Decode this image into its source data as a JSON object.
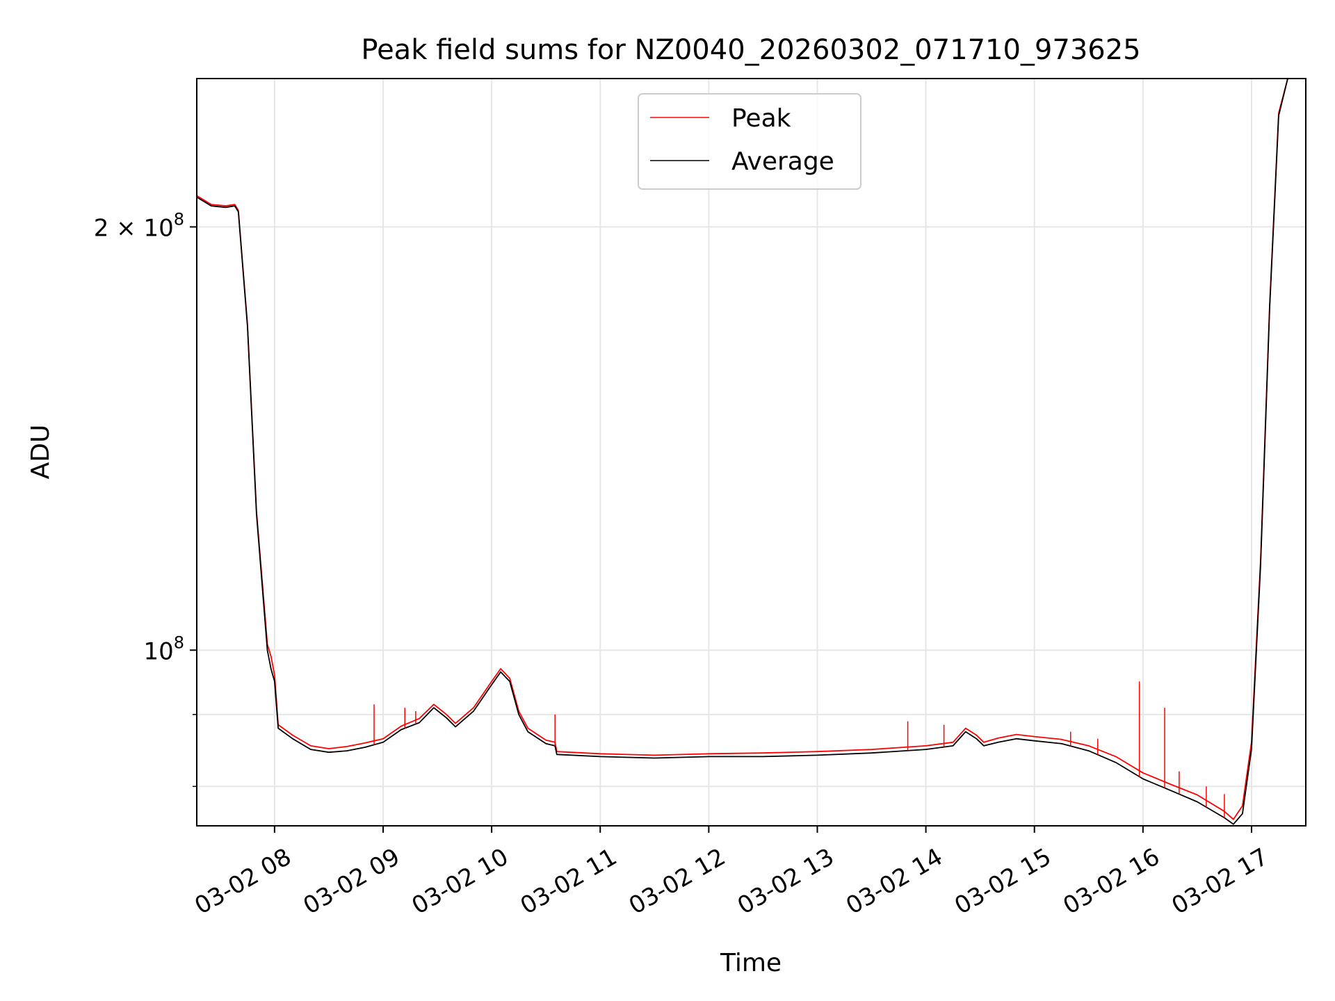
{
  "chart_data": {
    "type": "line",
    "title": "Peak field sums for NZ0040_20260302_071710_973625",
    "xlabel": "Time",
    "ylabel": "ADU",
    "yscale": "log",
    "xlim": [
      "2026-03-02 07:17",
      "2026-03-02 17:30"
    ],
    "ylim": [
      75000000,
      255000000
    ],
    "x_ticks": [
      {
        "value": "2026-03-02 08:00",
        "label": "03-02 08"
      },
      {
        "value": "2026-03-02 09:00",
        "label": "03-02 09"
      },
      {
        "value": "2026-03-02 10:00",
        "label": "03-02 10"
      },
      {
        "value": "2026-03-02 11:00",
        "label": "03-02 11"
      },
      {
        "value": "2026-03-02 12:00",
        "label": "03-02 12"
      },
      {
        "value": "2026-03-02 13:00",
        "label": "03-02 13"
      },
      {
        "value": "2026-03-02 14:00",
        "label": "03-02 14"
      },
      {
        "value": "2026-03-02 15:00",
        "label": "03-02 15"
      },
      {
        "value": "2026-03-02 16:00",
        "label": "03-02 16"
      },
      {
        "value": "2026-03-02 17:00",
        "label": "03-02 17"
      }
    ],
    "y_major_ticks": [
      {
        "value": 100000000,
        "base": "10",
        "exp": "8",
        "prefix": ""
      },
      {
        "value": 200000000,
        "base": "10",
        "exp": "8",
        "prefix": "2 × "
      }
    ],
    "y_minor_ticks": [
      80000000,
      90000000
    ],
    "grid": true,
    "legend_position": "top-center",
    "colors": {
      "peak": "#ff0000",
      "average": "#000000",
      "grid": "#e6e6e6"
    },
    "series": [
      {
        "name": "Average",
        "color": "#000000",
        "points": [
          [
            "2026-03-02 07:17",
            210000000
          ],
          [
            "2026-03-02 07:25",
            207000000
          ],
          [
            "2026-03-02 07:33",
            206500000
          ],
          [
            "2026-03-02 07:38",
            207000000
          ],
          [
            "2026-03-02 07:40",
            205000000
          ],
          [
            "2026-03-02 07:45",
            170000000
          ],
          [
            "2026-03-02 07:50",
            125000000
          ],
          [
            "2026-03-02 07:56",
            100000000
          ],
          [
            "2026-03-02 07:58",
            97000000
          ],
          [
            "2026-03-02 08:00",
            95000000
          ],
          [
            "2026-03-02 08:02",
            88000000
          ],
          [
            "2026-03-02 08:10",
            86500000
          ],
          [
            "2026-03-02 08:20",
            85000000
          ],
          [
            "2026-03-02 08:30",
            84600000
          ],
          [
            "2026-03-02 08:40",
            84800000
          ],
          [
            "2026-03-02 08:50",
            85300000
          ],
          [
            "2026-03-02 09:00",
            86000000
          ],
          [
            "2026-03-02 09:10",
            87800000
          ],
          [
            "2026-03-02 09:20",
            88800000
          ],
          [
            "2026-03-02 09:28",
            91000000
          ],
          [
            "2026-03-02 09:35",
            89500000
          ],
          [
            "2026-03-02 09:40",
            88200000
          ],
          [
            "2026-03-02 09:50",
            90500000
          ],
          [
            "2026-03-02 10:00",
            94500000
          ],
          [
            "2026-03-02 10:05",
            96500000
          ],
          [
            "2026-03-02 10:10",
            95000000
          ],
          [
            "2026-03-02 10:15",
            90000000
          ],
          [
            "2026-03-02 10:20",
            87500000
          ],
          [
            "2026-03-02 10:30",
            85800000
          ],
          [
            "2026-03-02 10:35",
            85500000
          ],
          [
            "2026-03-02 10:36",
            84300000
          ],
          [
            "2026-03-02 11:00",
            84000000
          ],
          [
            "2026-03-02 11:30",
            83800000
          ],
          [
            "2026-03-02 12:00",
            84000000
          ],
          [
            "2026-03-02 12:30",
            84000000
          ],
          [
            "2026-03-02 13:00",
            84200000
          ],
          [
            "2026-03-02 13:30",
            84500000
          ],
          [
            "2026-03-02 14:00",
            85000000
          ],
          [
            "2026-03-02 14:15",
            85500000
          ],
          [
            "2026-03-02 14:22",
            87500000
          ],
          [
            "2026-03-02 14:28",
            86500000
          ],
          [
            "2026-03-02 14:32",
            85500000
          ],
          [
            "2026-03-02 14:40",
            86000000
          ],
          [
            "2026-03-02 14:50",
            86500000
          ],
          [
            "2026-03-02 15:00",
            86200000
          ],
          [
            "2026-03-02 15:15",
            85800000
          ],
          [
            "2026-03-02 15:30",
            84800000
          ],
          [
            "2026-03-02 15:45",
            83200000
          ],
          [
            "2026-03-02 16:00",
            81000000
          ],
          [
            "2026-03-02 16:15",
            79500000
          ],
          [
            "2026-03-02 16:30",
            78000000
          ],
          [
            "2026-03-02 16:45",
            76000000
          ],
          [
            "2026-03-02 16:50",
            75200000
          ],
          [
            "2026-03-02 16:55",
            76500000
          ],
          [
            "2026-03-02 17:00",
            85000000
          ],
          [
            "2026-03-02 17:05",
            115000000
          ],
          [
            "2026-03-02 17:10",
            175000000
          ],
          [
            "2026-03-02 17:15",
            240000000
          ],
          [
            "2026-03-02 17:20",
            255000000
          ],
          [
            "2026-03-02 17:30",
            255000000
          ]
        ]
      },
      {
        "name": "Peak",
        "color": "#ff0000",
        "points": [
          [
            "2026-03-02 07:17",
            210500000
          ],
          [
            "2026-03-02 07:25",
            207500000
          ],
          [
            "2026-03-02 07:33",
            207000000
          ],
          [
            "2026-03-02 07:38",
            207500000
          ],
          [
            "2026-03-02 07:40",
            205500000
          ],
          [
            "2026-03-02 07:45",
            170500000
          ],
          [
            "2026-03-02 07:50",
            125500000
          ],
          [
            "2026-03-02 07:56",
            101000000
          ],
          [
            "2026-03-02 07:58",
            99000000
          ],
          [
            "2026-03-02 08:00",
            96000000
          ],
          [
            "2026-03-02 08:02",
            88500000
          ],
          [
            "2026-03-02 08:10",
            87000000
          ],
          [
            "2026-03-02 08:20",
            85500000
          ],
          [
            "2026-03-02 08:30",
            85100000
          ],
          [
            "2026-03-02 08:40",
            85400000
          ],
          [
            "2026-03-02 08:50",
            85900000
          ],
          [
            "2026-03-02 09:00",
            86500000
          ],
          [
            "2026-03-02 09:10",
            88300000
          ],
          [
            "2026-03-02 09:20",
            89400000
          ],
          [
            "2026-03-02 09:28",
            91500000
          ],
          [
            "2026-03-02 09:35",
            90000000
          ],
          [
            "2026-03-02 09:40",
            88700000
          ],
          [
            "2026-03-02 09:50",
            91000000
          ],
          [
            "2026-03-02 10:00",
            95000000
          ],
          [
            "2026-03-02 10:05",
            97000000
          ],
          [
            "2026-03-02 10:10",
            95500000
          ],
          [
            "2026-03-02 10:15",
            90500000
          ],
          [
            "2026-03-02 10:20",
            88000000
          ],
          [
            "2026-03-02 10:30",
            86300000
          ],
          [
            "2026-03-02 10:35",
            86000000
          ],
          [
            "2026-03-02 10:36",
            84700000
          ],
          [
            "2026-03-02 11:00",
            84400000
          ],
          [
            "2026-03-02 11:30",
            84200000
          ],
          [
            "2026-03-02 12:00",
            84400000
          ],
          [
            "2026-03-02 12:30",
            84500000
          ],
          [
            "2026-03-02 13:00",
            84700000
          ],
          [
            "2026-03-02 13:30",
            85000000
          ],
          [
            "2026-03-02 14:00",
            85500000
          ],
          [
            "2026-03-02 14:15",
            86000000
          ],
          [
            "2026-03-02 14:22",
            88000000
          ],
          [
            "2026-03-02 14:28",
            87000000
          ],
          [
            "2026-03-02 14:32",
            86000000
          ],
          [
            "2026-03-02 14:40",
            86600000
          ],
          [
            "2026-03-02 14:50",
            87100000
          ],
          [
            "2026-03-02 15:00",
            86800000
          ],
          [
            "2026-03-02 15:15",
            86400000
          ],
          [
            "2026-03-02 15:30",
            85500000
          ],
          [
            "2026-03-02 15:45",
            84000000
          ],
          [
            "2026-03-02 16:00",
            81800000
          ],
          [
            "2026-03-02 16:15",
            80300000
          ],
          [
            "2026-03-02 16:30",
            78900000
          ],
          [
            "2026-03-02 16:45",
            76800000
          ],
          [
            "2026-03-02 16:50",
            75800000
          ],
          [
            "2026-03-02 16:55",
            77500000
          ],
          [
            "2026-03-02 17:00",
            86000000
          ],
          [
            "2026-03-02 17:05",
            116000000
          ],
          [
            "2026-03-02 17:10",
            176000000
          ],
          [
            "2026-03-02 17:15",
            241000000
          ],
          [
            "2026-03-02 17:20",
            255000000
          ],
          [
            "2026-03-02 17:30",
            255000000
          ]
        ]
      }
    ],
    "peak_spikes": [
      [
        "2026-03-02 08:55",
        91500000
      ],
      [
        "2026-03-02 09:12",
        91000000
      ],
      [
        "2026-03-02 09:18",
        90500000
      ],
      [
        "2026-03-02 10:35",
        90000000
      ],
      [
        "2026-03-02 13:50",
        89000000
      ],
      [
        "2026-03-02 14:10",
        88500000
      ],
      [
        "2026-03-02 15:20",
        87500000
      ],
      [
        "2026-03-02 15:35",
        86500000
      ],
      [
        "2026-03-02 15:58",
        95000000
      ],
      [
        "2026-03-02 16:12",
        91000000
      ],
      [
        "2026-03-02 16:20",
        82000000
      ],
      [
        "2026-03-02 16:35",
        80000000
      ],
      [
        "2026-03-02 16:45",
        79000000
      ]
    ]
  }
}
